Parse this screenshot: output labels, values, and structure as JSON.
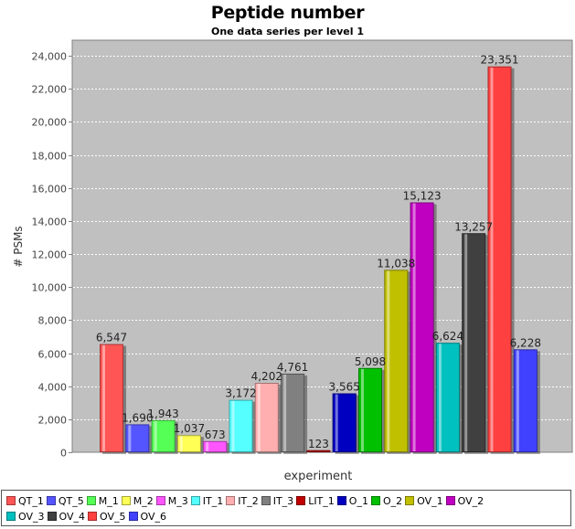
{
  "chart_data": {
    "type": "bar",
    "title": "Peptide number",
    "subtitle": "One data series per level 1",
    "xlabel": "experiment",
    "ylabel": "# PSMs",
    "ylim": [
      0,
      24500
    ],
    "yticks": [
      0,
      2000,
      4000,
      6000,
      8000,
      10000,
      12000,
      14000,
      16000,
      18000,
      20000,
      22000,
      24000
    ],
    "ytick_labels": [
      "0",
      "2,000",
      "4,000",
      "6,000",
      "8,000",
      "10,000",
      "12,000",
      "14,000",
      "16,000",
      "18,000",
      "20,000",
      "22,000",
      "24,000"
    ],
    "grid": true,
    "legend_position": "bottom",
    "series": [
      {
        "name": "QT_1",
        "value": 6547,
        "label": "6,547",
        "color": "#ff5555"
      },
      {
        "name": "QT_5",
        "value": 1690,
        "label": "1,690",
        "color": "#5555ff"
      },
      {
        "name": "M_1",
        "value": 1943,
        "label": "1,943",
        "color": "#55ff55"
      },
      {
        "name": "M_2",
        "value": 1037,
        "label": "1,037",
        "color": "#ffff55"
      },
      {
        "name": "M_3",
        "value": 673,
        "label": "673",
        "color": "#ff55ff"
      },
      {
        "name": "IT_1",
        "value": 3172,
        "label": "3,172",
        "color": "#55ffff"
      },
      {
        "name": "IT_2",
        "value": 4202,
        "label": "4,202",
        "color": "#ffafaf"
      },
      {
        "name": "IT_3",
        "value": 4761,
        "label": "4,761",
        "color": "#808080"
      },
      {
        "name": "LIT_1",
        "value": 123,
        "label": "123",
        "color": "#c00000"
      },
      {
        "name": "O_1",
        "value": 3565,
        "label": "3,565",
        "color": "#0000c0"
      },
      {
        "name": "O_2",
        "value": 5098,
        "label": "5,098",
        "color": "#00c000"
      },
      {
        "name": "OV_1",
        "value": 11038,
        "label": "11,038",
        "color": "#c0c000"
      },
      {
        "name": "OV_2",
        "value": 15123,
        "label": "15,123",
        "color": "#c000c0"
      },
      {
        "name": "OV_3",
        "value": 6624,
        "label": "6,624",
        "color": "#00c0c0"
      },
      {
        "name": "OV_4",
        "value": 13257,
        "label": "13,257",
        "color": "#404040"
      },
      {
        "name": "OV_5",
        "value": 23351,
        "label": "23,351",
        "color": "#ff4040"
      },
      {
        "name": "OV_6",
        "value": 6228,
        "label": "6,228",
        "color": "#4040ff"
      }
    ]
  }
}
